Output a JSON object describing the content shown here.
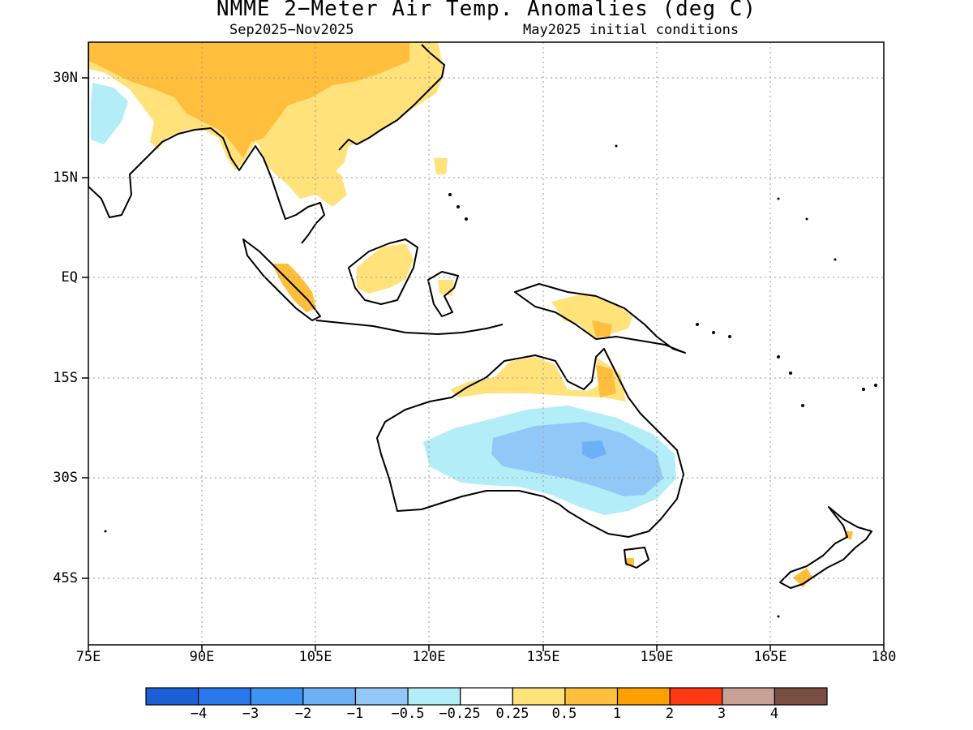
{
  "title": "NMME 2−Meter Air Temp. Anomalies (deg C)",
  "subtitle_left": "Sep2025−Nov2025",
  "subtitle_right": "May2025 initial conditions",
  "lat_labels": [
    "30N",
    "15N",
    "EQ",
    "15S",
    "30S",
    "45S"
  ],
  "lon_labels": [
    "75E",
    "90E",
    "105E",
    "120E",
    "135E",
    "150E",
    "165E",
    "180"
  ],
  "colorbar": {
    "labels": [
      "−4",
      "−3",
      "−2",
      "−1",
      "−0.5",
      "−0.25",
      "0.25",
      "0.5",
      "1",
      "2",
      "3",
      "4"
    ],
    "colors": [
      "#1a5fd6",
      "#2a78ee",
      "#3e94f2",
      "#6cb1f6",
      "#92c8f8",
      "#b3eef8",
      "#ffffff",
      "#ffe27a",
      "#ffbe3c",
      "#ffa000",
      "#ff3812",
      "#c8a096",
      "#7a4e42"
    ]
  },
  "anomaly_regions": [
    {
      "name": "china-warm",
      "color": "#ffe27a"
    },
    {
      "name": "china-warm-core",
      "color": "#ffbe3c"
    },
    {
      "name": "mainland-se-asia-warm",
      "color": "#ffe27a"
    },
    {
      "name": "borneo-warm",
      "color": "#ffe27a"
    },
    {
      "name": "sumatra-warm",
      "color": "#ffbe3c"
    },
    {
      "name": "new-guinea-warm",
      "color": "#ffe27a"
    },
    {
      "name": "north-australia-warm",
      "color": "#ffe27a"
    },
    {
      "name": "australia-cool",
      "color": "#b3eef8"
    },
    {
      "name": "australia-cool-core",
      "color": "#92c8f8"
    },
    {
      "name": "australia-cool-center",
      "color": "#6cb1f6"
    },
    {
      "name": "tibet-cool",
      "color": "#b3eef8"
    },
    {
      "name": "new-zealand-warm",
      "color": "#ffbe3c"
    }
  ]
}
